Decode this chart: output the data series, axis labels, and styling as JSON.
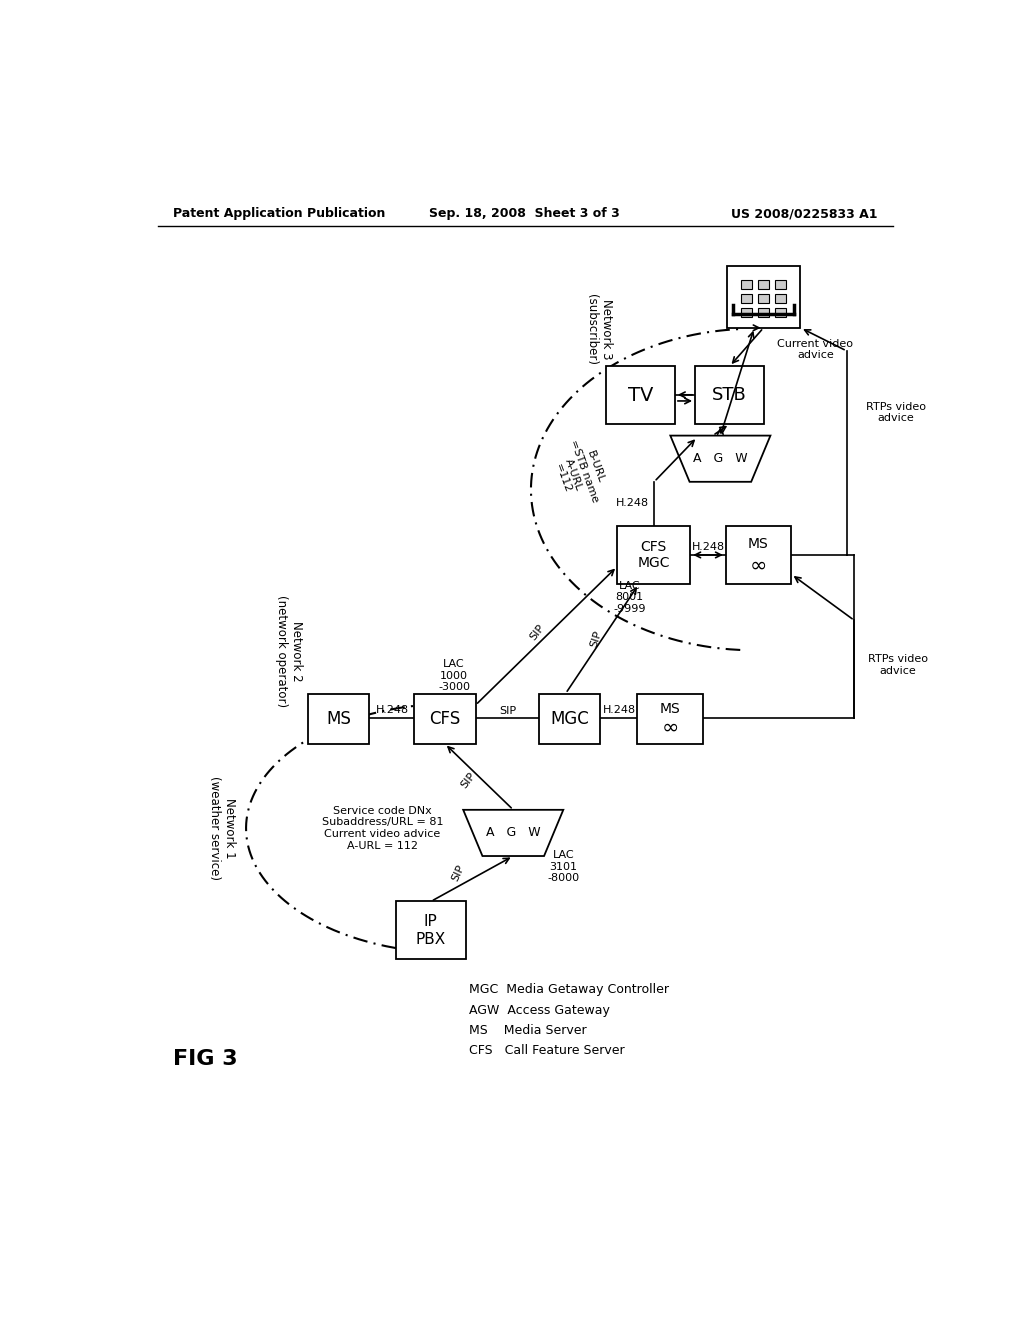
{
  "bg": "#ffffff",
  "header_left": "Patent Application Publication",
  "header_mid": "Sep. 18, 2008  Sheet 3 of 3",
  "header_right": "US 2008/0225833 A1",
  "fig_label": "FIG 3",
  "legend_lines": [
    "MGC  Media Getaway Controller",
    "AGW  Access Gateway",
    "MS    Media Server",
    "CFS   Call Feature Server"
  ]
}
